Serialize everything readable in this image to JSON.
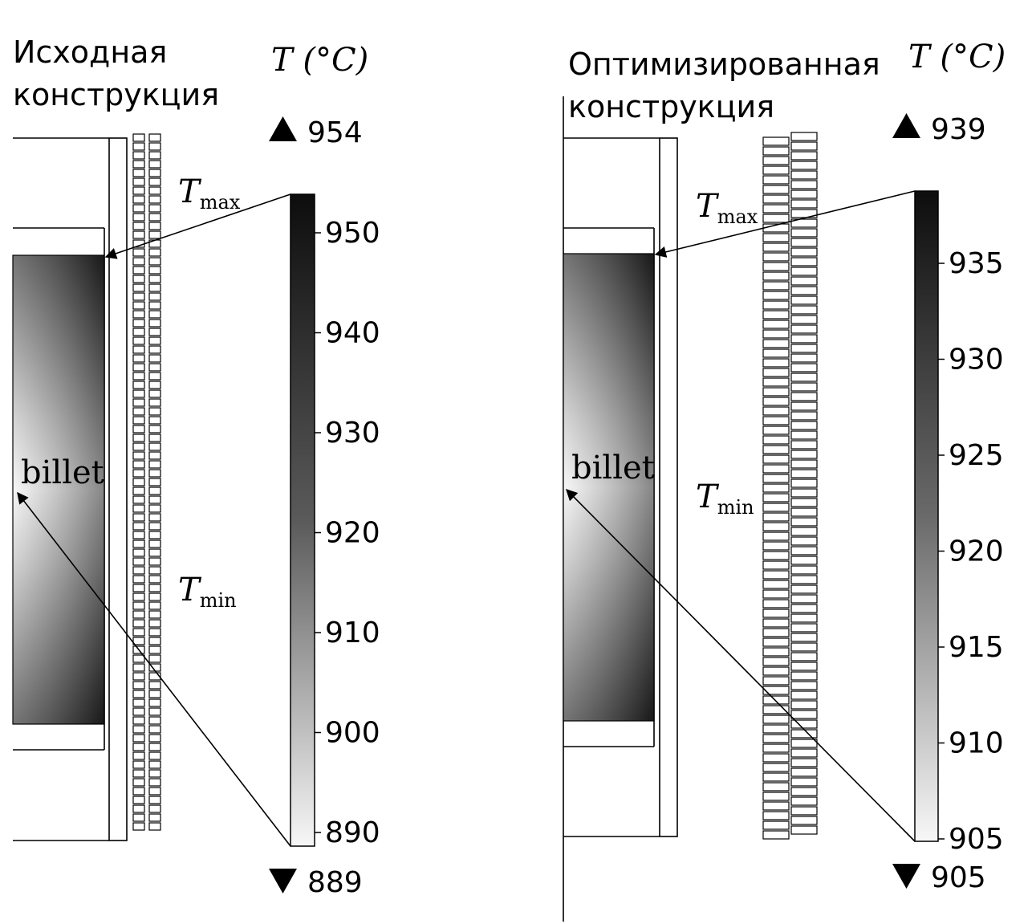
{
  "panels": [
    {
      "id": "left",
      "title_line1": "Исходная",
      "title_line2": "конструкция",
      "unit_label": "T (°C)",
      "max_value": "954",
      "min_value": "889",
      "colorbar_ticks": [
        "950",
        "940",
        "930",
        "920",
        "910",
        "900",
        "890"
      ],
      "tmax_label": "T",
      "tmax_sub": "max",
      "tmin_label": "T",
      "tmin_sub": "min",
      "billet_label": "billet"
    },
    {
      "id": "right",
      "title_line1": "Оптимизированная",
      "title_line2": "конструкция",
      "unit_label": "T (°C)",
      "max_value": "939",
      "min_value": "905",
      "colorbar_ticks": [
        "935",
        "930",
        "925",
        "920",
        "915",
        "910",
        "905"
      ],
      "tmax_label": "T",
      "tmax_sub": "max",
      "tmin_label": "T",
      "tmin_sub": "min",
      "billet_label": "billet"
    }
  ],
  "colors": {
    "ink": "#000000",
    "max": "#0d0d0d",
    "min": "#f7f7f7"
  }
}
